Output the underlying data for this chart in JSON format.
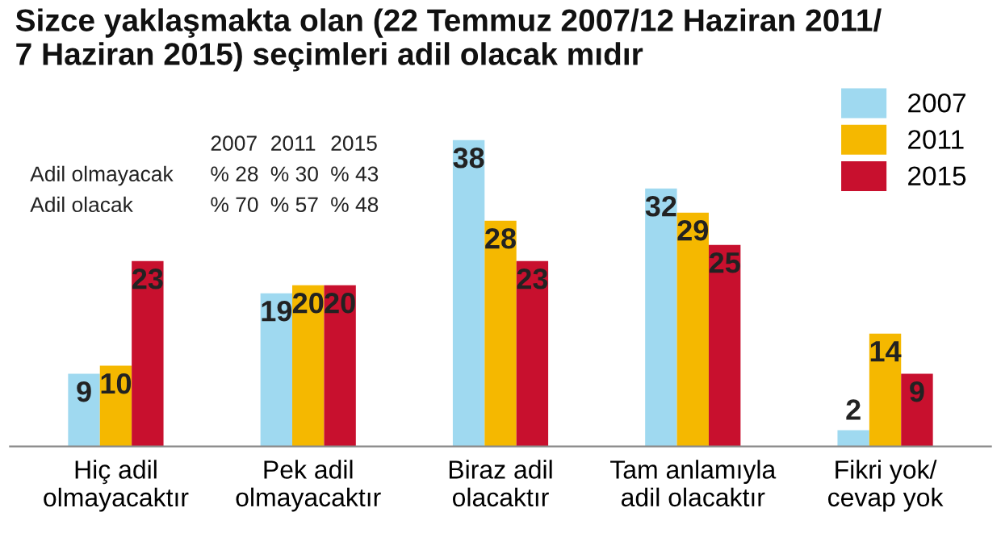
{
  "chart_data": {
    "type": "bar",
    "title": "Sizce yaklaşmakta olan (22 Temmuz 2007/12 Haziran 2011/\n7 Haziran 2015) seçimleri adil olacak mıdır",
    "categories": [
      "Hiç adil\nolmayacaktır",
      "Pek adil\nolmayacaktır",
      "Biraz adil\nolacaktır",
      "Tam anlamıyla\nadil olacaktır",
      "Fikri yok/\ncevap yok"
    ],
    "series": [
      {
        "name": "2007",
        "color": "#9fd9f0",
        "values": [
          9,
          19,
          38,
          32,
          2
        ]
      },
      {
        "name": "2011",
        "color": "#f5b800",
        "values": [
          10,
          20,
          28,
          29,
          14
        ]
      },
      {
        "name": "2015",
        "color": "#c8102e",
        "values": [
          23,
          20,
          23,
          25,
          9
        ]
      }
    ],
    "data_labels": true,
    "legend": "top right",
    "annotations": [
      "2007",
      "2011",
      "2015",
      "Adil olmayacak",
      "% 28",
      "% 30",
      "% 43",
      "Adil olacak",
      "% 70",
      "% 57",
      "% 48"
    ]
  }
}
